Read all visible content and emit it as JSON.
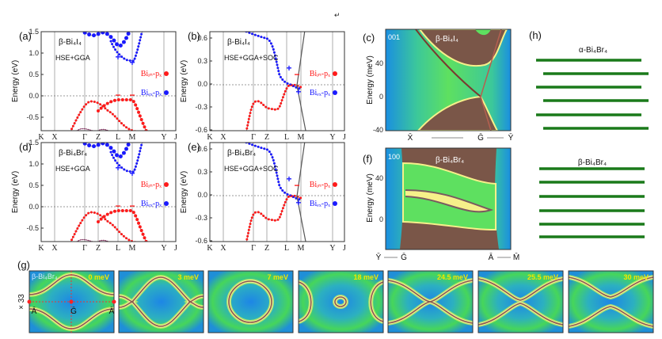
{
  "colors": {
    "bi_in": "#ff1a1a",
    "bi_ex": "#1a1aff",
    "surface_bg": "#1a8fe0",
    "surface_mid": "#3dde55",
    "bulk": "#7a5648",
    "edge": "#f6f08a",
    "chain": "#1a7a1a"
  },
  "return_mark": "↵",
  "band_panels": [
    {
      "label": "(a)",
      "material": "β-Bi₄I₄",
      "method": "HSE+GGA",
      "ylabel": "Energy (eV)",
      "yticks": [
        "1.5",
        "1.0",
        "0.5",
        "0.0",
        "-0.5"
      ]
    },
    {
      "label": "(b)",
      "material": "β-Bi₄I₄",
      "method": "HSE+GGA+SOC",
      "ylabel": "Energy (eV)",
      "yticks": [
        "0.6",
        "0.3",
        "0.0",
        "-0.3",
        "-0.6"
      ]
    },
    {
      "label": "(d)",
      "material": "β-Bi₄Br₄",
      "method": "HSE+GGA",
      "ylabel": "Energy (eV)",
      "yticks": [
        "1.5",
        "1.0",
        "0.5",
        "0.0",
        "-0.5"
      ]
    },
    {
      "label": "(e)",
      "material": "β-Bi₄Br₄",
      "method": "HSE+GGA+SOC",
      "ylabel": "Energy (eV)",
      "yticks": [
        "0.6",
        "0.3",
        "0.0",
        "-0.3",
        "-0.6"
      ]
    }
  ],
  "kpath": [
    "K",
    "X",
    "Γ",
    "Z",
    "L",
    "M",
    "Y",
    "J"
  ],
  "legend": {
    "bi_in": "Biᵢₙ-pₓ",
    "bi_ex": "Biₑₓ-pₓ"
  },
  "surface_c": {
    "label": "(c)",
    "surface": "001",
    "material": "β-Bi₄I₄",
    "ylabel": "Energy (meV)",
    "yticks": [
      "40",
      "0",
      "-40"
    ],
    "kpoints": {
      "left": "X̄",
      "mid": "Ḡ",
      "right": "Ȳ"
    }
  },
  "surface_f": {
    "label": "(f)",
    "surface": "100",
    "material": "β-Bi₄Br₄",
    "ylabel": "Energy (meV)",
    "yticks": [
      "40",
      "0"
    ],
    "kpoints": {
      "p1": "Ȳ",
      "p2": "Ḡ",
      "p3": "Ā",
      "p4": "M̄"
    }
  },
  "fermi": {
    "label": "(g)",
    "material": "β-Bi₄Br₄",
    "scale": "× 33",
    "points": {
      "a_left": "Ā",
      "g": "Ḡ",
      "a_right": "Ā"
    },
    "energies": [
      "0 meV",
      "3 meV",
      "7 meV",
      "18 meV",
      "24.5 meV",
      "25.5 meV",
      "30 meV"
    ]
  },
  "stacking": {
    "label": "(h)",
    "alpha": "α-Bi₄Br₄",
    "beta": "β-Bi₄Br₄"
  }
}
